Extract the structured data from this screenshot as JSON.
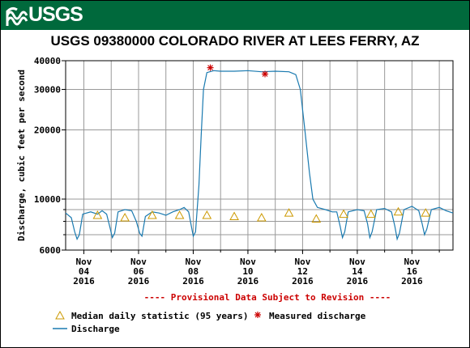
{
  "header": {
    "agency": "USGS",
    "brand_color": "#00693c"
  },
  "chart_data": {
    "type": "line",
    "title": "USGS 09380000 COLORADO RIVER AT LEES FERRY, AZ",
    "ylabel": "Discharge, cubic feet per second",
    "y_scale": "log",
    "ylim": [
      6000,
      40000
    ],
    "y_ticks": [
      6000,
      10000,
      20000,
      30000,
      40000
    ],
    "xlim": [
      "2016-11-03T08:00",
      "2016-11-17T12:00"
    ],
    "x_ticks": [
      {
        "date": "2016-11-04",
        "line1": "Nov",
        "line2": "04",
        "line3": "2016"
      },
      {
        "date": "2016-11-06",
        "line1": "Nov",
        "line2": "06",
        "line3": "2016"
      },
      {
        "date": "2016-11-08",
        "line1": "Nov",
        "line2": "08",
        "line3": "2016"
      },
      {
        "date": "2016-11-10",
        "line1": "Nov",
        "line2": "10",
        "line3": "2016"
      },
      {
        "date": "2016-11-12",
        "line1": "Nov",
        "line2": "12",
        "line3": "2016"
      },
      {
        "date": "2016-11-14",
        "line1": "Nov",
        "line2": "14",
        "line3": "2016"
      },
      {
        "date": "2016-11-16",
        "line1": "Nov",
        "line2": "16",
        "line3": "2016"
      }
    ],
    "grid": true,
    "note": "---- Provisional Data Subject to Revision ----",
    "legend": [
      {
        "label": "Median daily statistic (95 years)",
        "marker": "triangle",
        "color": "#cc9900"
      },
      {
        "label": "Measured discharge",
        "marker": "asterisk",
        "color": "#cc0000"
      },
      {
        "label": "Discharge",
        "marker": "line",
        "color": "#1a7ab0"
      }
    ],
    "series": [
      {
        "name": "Discharge",
        "color": "#1a7ab0",
        "points": [
          [
            "2016-11-03T08:00",
            8700
          ],
          [
            "2016-11-03T13:00",
            8300
          ],
          [
            "2016-11-03T16:00",
            7200
          ],
          [
            "2016-11-03T18:00",
            6700
          ],
          [
            "2016-11-03T20:00",
            7000
          ],
          [
            "2016-11-03T23:00",
            8600
          ],
          [
            "2016-11-04T06:00",
            8800
          ],
          [
            "2016-11-04T12:00",
            8600
          ],
          [
            "2016-11-04T16:00",
            8900
          ],
          [
            "2016-11-04T20:00",
            8600
          ],
          [
            "2016-11-04T23:00",
            7500
          ],
          [
            "2016-11-05T01:00",
            6800
          ],
          [
            "2016-11-05T03:00",
            7100
          ],
          [
            "2016-11-05T06:00",
            8800
          ],
          [
            "2016-11-05T12:00",
            9000
          ],
          [
            "2016-11-05T18:00",
            8900
          ],
          [
            "2016-11-05T22:00",
            8000
          ],
          [
            "2016-11-06T01:00",
            7100
          ],
          [
            "2016-11-06T03:00",
            6900
          ],
          [
            "2016-11-06T06:00",
            8400
          ],
          [
            "2016-11-06T12:00",
            8800
          ],
          [
            "2016-11-06T18:00",
            8700
          ],
          [
            "2016-11-07T00:00",
            8500
          ],
          [
            "2016-11-07T06:00",
            8800
          ],
          [
            "2016-11-07T12:00",
            9000
          ],
          [
            "2016-11-07T16:00",
            9200
          ],
          [
            "2016-11-07T20:00",
            8800
          ],
          [
            "2016-11-07T22:00",
            7800
          ],
          [
            "2016-11-08T00:00",
            6900
          ],
          [
            "2016-11-08T02:00",
            7200
          ],
          [
            "2016-11-08T05:00",
            11500
          ],
          [
            "2016-11-08T07:00",
            19000
          ],
          [
            "2016-11-08T09:00",
            30000
          ],
          [
            "2016-11-08T12:00",
            35500
          ],
          [
            "2016-11-08T18:00",
            36200
          ],
          [
            "2016-11-09T00:00",
            36000
          ],
          [
            "2016-11-09T12:00",
            36000
          ],
          [
            "2016-11-10T00:00",
            36200
          ],
          [
            "2016-11-10T12:00",
            35800
          ],
          [
            "2016-11-11T00:00",
            36000
          ],
          [
            "2016-11-11T12:00",
            35800
          ],
          [
            "2016-11-11T18:00",
            34800
          ],
          [
            "2016-11-11T22:00",
            30000
          ],
          [
            "2016-11-12T02:00",
            20000
          ],
          [
            "2016-11-12T06:00",
            13000
          ],
          [
            "2016-11-12T09:00",
            10000
          ],
          [
            "2016-11-12T13:00",
            9200
          ],
          [
            "2016-11-12T20:00",
            9000
          ],
          [
            "2016-11-13T02:00",
            8800
          ],
          [
            "2016-11-13T06:00",
            8800
          ],
          [
            "2016-11-13T09:00",
            7600
          ],
          [
            "2016-11-13T11:00",
            6800
          ],
          [
            "2016-11-13T13:00",
            7200
          ],
          [
            "2016-11-13T16:00",
            8800
          ],
          [
            "2016-11-14T00:00",
            9000
          ],
          [
            "2016-11-14T06:00",
            8900
          ],
          [
            "2016-11-14T09:00",
            7800
          ],
          [
            "2016-11-14T11:00",
            6800
          ],
          [
            "2016-11-14T13:00",
            7200
          ],
          [
            "2016-11-14T17:00",
            9000
          ],
          [
            "2016-11-15T00:00",
            9100
          ],
          [
            "2016-11-15T06:00",
            8800
          ],
          [
            "2016-11-15T09:00",
            7600
          ],
          [
            "2016-11-15T11:00",
            6700
          ],
          [
            "2016-11-15T13:00",
            7100
          ],
          [
            "2016-11-15T17:00",
            9000
          ],
          [
            "2016-11-16T00:00",
            9300
          ],
          [
            "2016-11-16T06:00",
            8900
          ],
          [
            "2016-11-16T09:00",
            7800
          ],
          [
            "2016-11-16T11:00",
            7000
          ],
          [
            "2016-11-16T13:00",
            7400
          ],
          [
            "2016-11-16T17:00",
            9000
          ],
          [
            "2016-11-17T00:00",
            9200
          ],
          [
            "2016-11-17T06:00",
            8900
          ],
          [
            "2016-11-17T12:00",
            8700
          ]
        ]
      },
      {
        "name": "Median daily statistic (95 years)",
        "marker": "triangle",
        "color": "#cc9900",
        "points": [
          [
            "2016-11-04T12:00",
            8500
          ],
          [
            "2016-11-05T12:00",
            8300
          ],
          [
            "2016-11-06T12:00",
            8500
          ],
          [
            "2016-11-07T12:00",
            8500
          ],
          [
            "2016-11-08T12:00",
            8500
          ],
          [
            "2016-11-09T12:00",
            8400
          ],
          [
            "2016-11-10T12:00",
            8300
          ],
          [
            "2016-11-11T12:00",
            8700
          ],
          [
            "2016-11-12T12:00",
            8200
          ],
          [
            "2016-11-13T12:00",
            8600
          ],
          [
            "2016-11-14T12:00",
            8600
          ],
          [
            "2016-11-15T12:00",
            8800
          ],
          [
            "2016-11-16T12:00",
            8700
          ]
        ]
      },
      {
        "name": "Measured discharge",
        "marker": "asterisk",
        "color": "#cc0000",
        "points": [
          [
            "2016-11-08T15:00",
            37300
          ],
          [
            "2016-11-10T15:00",
            35000
          ]
        ]
      }
    ]
  }
}
